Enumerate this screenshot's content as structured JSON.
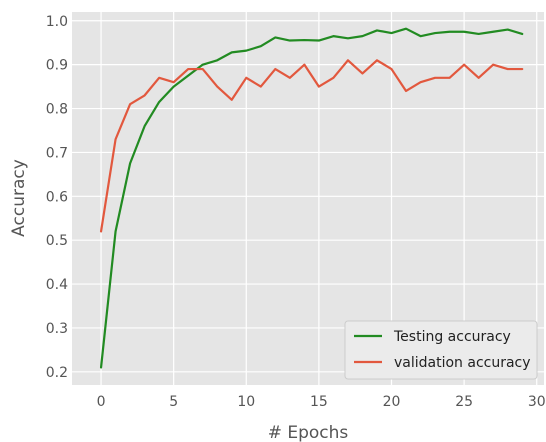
{
  "chart_data": {
    "type": "line",
    "title": "",
    "xlabel": "# Epochs",
    "ylabel": "Accuracy",
    "xlim": [
      -2,
      30.5
    ],
    "ylim": [
      0.17,
      1.02
    ],
    "xticks": [
      0,
      5,
      10,
      15,
      20,
      25,
      30
    ],
    "xtick_labels": [
      "0",
      "5",
      "10",
      "15",
      "20",
      "25",
      "30"
    ],
    "yticks": [
      0.2,
      0.3,
      0.4,
      0.5,
      0.6,
      0.7,
      0.8,
      0.9,
      1.0
    ],
    "ytick_labels": [
      "0.2",
      "0.3",
      "0.4",
      "0.5",
      "0.6",
      "0.7",
      "0.8",
      "0.9",
      "1.0"
    ],
    "grid": true,
    "legend_position": "lower-right",
    "background_color": "#e5e5e5",
    "grid_color": "#ffffff",
    "x": [
      0,
      1,
      2,
      3,
      4,
      5,
      6,
      7,
      8,
      9,
      10,
      11,
      12,
      13,
      14,
      15,
      16,
      17,
      18,
      19,
      20,
      21,
      22,
      23,
      24,
      25,
      26,
      27,
      28,
      29
    ],
    "series": [
      {
        "name": "Testing accuracy",
        "color": "#228b22",
        "values": [
          0.21,
          0.52,
          0.675,
          0.76,
          0.815,
          0.85,
          0.875,
          0.9,
          0.91,
          0.928,
          0.932,
          0.942,
          0.962,
          0.955,
          0.956,
          0.955,
          0.965,
          0.96,
          0.965,
          0.978,
          0.972,
          0.982,
          0.965,
          0.972,
          0.975,
          0.975,
          0.97,
          0.975,
          0.98,
          0.97
        ]
      },
      {
        "name": "validation accuracy",
        "color": "#e2583e",
        "values": [
          0.52,
          0.73,
          0.81,
          0.83,
          0.87,
          0.86,
          0.89,
          0.89,
          0.85,
          0.82,
          0.87,
          0.85,
          0.89,
          0.87,
          0.9,
          0.85,
          0.87,
          0.91,
          0.88,
          0.91,
          0.89,
          0.84,
          0.86,
          0.87,
          0.87,
          0.9,
          0.87,
          0.9,
          0.89,
          0.89
        ]
      }
    ]
  }
}
